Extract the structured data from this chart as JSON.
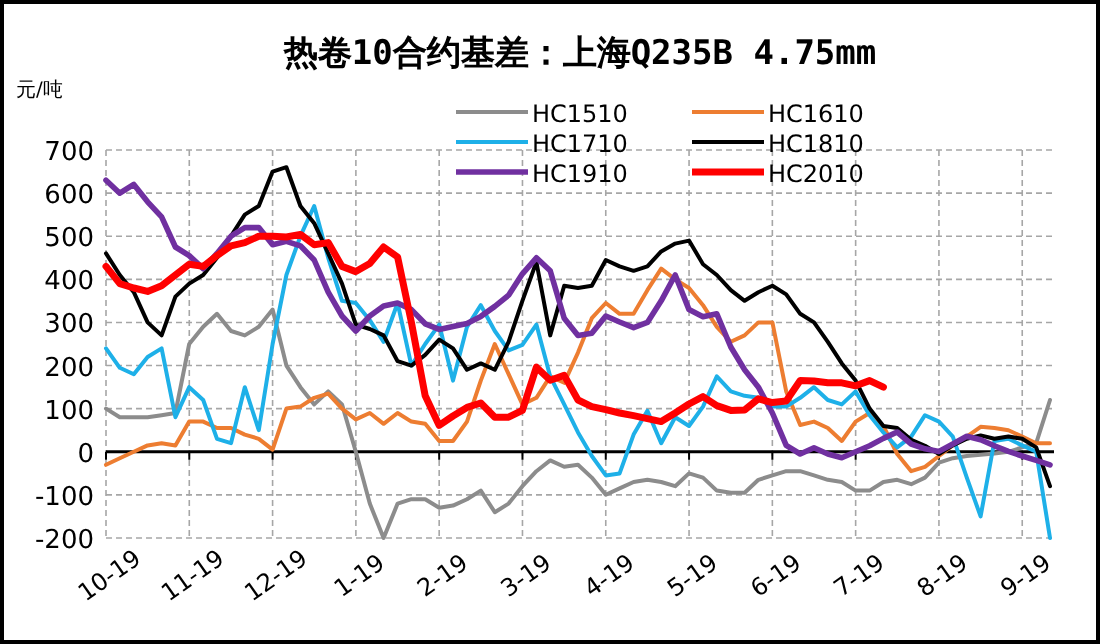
{
  "chart_data": {
    "type": "line",
    "title": "热卷10合约基差：上海Q235B 4.75mm",
    "ylabel": "元/吨",
    "categories": [
      "10-19",
      null,
      null,
      null,
      null,
      null,
      "11-19",
      null,
      null,
      null,
      null,
      null,
      "12-19",
      null,
      null,
      null,
      null,
      null,
      "1-19",
      null,
      null,
      null,
      null,
      null,
      "2-19",
      null,
      null,
      null,
      null,
      null,
      "3-19",
      null,
      null,
      null,
      null,
      null,
      "4-19",
      null,
      null,
      null,
      null,
      null,
      "5-19",
      null,
      null,
      null,
      null,
      null,
      "6-19",
      null,
      null,
      null,
      null,
      null,
      "7-19",
      null,
      null,
      null,
      null,
      null,
      "8-19",
      null,
      null,
      null,
      null,
      null,
      "9-19",
      null,
      null
    ],
    "ylim": [
      -200,
      700
    ],
    "yticks": [
      -200,
      -100,
      0,
      100,
      200,
      300,
      400,
      500,
      600,
      700
    ],
    "grid": true,
    "legend": "top",
    "marker": "none",
    "line_style": "solid",
    "series": [
      {
        "name": "HC1510",
        "color": "#8c8c8c",
        "values": [
          100,
          80,
          80,
          80,
          85,
          90,
          250,
          290,
          320,
          280,
          270,
          290,
          330,
          200,
          150,
          110,
          140,
          110,
          0,
          -120,
          -200,
          -120,
          -110,
          -110,
          -130,
          -125,
          -110,
          -90,
          -140,
          -120,
          -80,
          -45,
          -20,
          -35,
          -30,
          -60,
          -100,
          -85,
          -70,
          -65,
          -70,
          -80,
          -50,
          -60,
          -90,
          -95,
          -95,
          -65,
          -55,
          -45,
          -45,
          -55,
          -65,
          -70,
          -90,
          -90,
          -70,
          -65,
          -75,
          -60,
          -25,
          -15,
          -10,
          -7,
          -4,
          0,
          10,
          20,
          120
        ]
      },
      {
        "name": "HC1610",
        "color": "#ed7d31",
        "values": [
          -30,
          -15,
          0,
          15,
          20,
          15,
          70,
          70,
          55,
          55,
          40,
          30,
          5,
          100,
          105,
          125,
          135,
          100,
          75,
          90,
          65,
          90,
          70,
          65,
          25,
          25,
          70,
          165,
          250,
          180,
          110,
          125,
          175,
          160,
          230,
          310,
          345,
          320,
          320,
          375,
          425,
          400,
          380,
          340,
          290,
          255,
          270,
          300,
          300,
          140,
          62,
          70,
          55,
          25,
          70,
          90,
          60,
          -5,
          -45,
          -35,
          -10,
          15,
          35,
          58,
          55,
          50,
          35,
          20,
          20
        ]
      },
      {
        "name": "HC1710",
        "color": "#1eb0e8",
        "values": [
          240,
          195,
          180,
          220,
          240,
          80,
          150,
          120,
          30,
          20,
          150,
          50,
          250,
          410,
          500,
          570,
          450,
          350,
          345,
          305,
          255,
          345,
          200,
          250,
          295,
          165,
          290,
          340,
          280,
          235,
          248,
          295,
          175,
          110,
          45,
          -10,
          -55,
          -50,
          40,
          95,
          20,
          80,
          60,
          105,
          175,
          140,
          130,
          125,
          105,
          105,
          125,
          150,
          120,
          110,
          140,
          85,
          45,
          10,
          35,
          85,
          70,
          35,
          -60,
          -150,
          25,
          30,
          15,
          0,
          -200
        ]
      },
      {
        "name": "HC1810",
        "color": "#000000",
        "values": [
          460,
          410,
          370,
          300,
          270,
          360,
          390,
          410,
          450,
          500,
          550,
          570,
          650,
          660,
          570,
          530,
          460,
          390,
          295,
          285,
          270,
          210,
          200,
          225,
          260,
          240,
          190,
          205,
          190,
          255,
          350,
          440,
          270,
          385,
          380,
          385,
          445,
          430,
          420,
          430,
          465,
          483,
          490,
          435,
          410,
          375,
          350,
          370,
          385,
          365,
          320,
          300,
          255,
          205,
          165,
          100,
          60,
          55,
          28,
          14,
          -5,
          15,
          30,
          38,
          30,
          35,
          30,
          10,
          -80
        ]
      },
      {
        "name": "HC1910",
        "color": "#7030a0",
        "values": [
          630,
          600,
          620,
          580,
          545,
          475,
          455,
          425,
          460,
          500,
          520,
          520,
          480,
          488,
          478,
          445,
          370,
          315,
          280,
          315,
          338,
          345,
          330,
          297,
          284,
          291,
          298,
          314,
          337,
          363,
          413,
          450,
          420,
          310,
          270,
          275,
          315,
          301,
          288,
          300,
          350,
          410,
          330,
          313,
          320,
          243,
          190,
          150,
          90,
          15,
          -5,
          9,
          -5,
          -14,
          0,
          14,
          31,
          46,
          18,
          7,
          1,
          18,
          36,
          28,
          14,
          1,
          -10,
          -20,
          -30
        ]
      },
      {
        "name": "HC2010",
        "color": "#ff0000",
        "values": [
          430,
          390,
          380,
          372,
          385,
          410,
          435,
          430,
          455,
          478,
          485,
          500,
          500,
          498,
          504,
          480,
          485,
          430,
          418,
          437,
          475,
          452,
          300,
          130,
          61,
          83,
          103,
          113,
          80,
          80,
          96,
          196,
          166,
          177,
          120,
          105,
          98,
          90,
          84,
          77,
          70,
          90,
          111,
          128,
          107,
          96,
          97,
          123,
          114,
          118,
          165,
          164,
          160,
          160,
          153,
          165,
          150,
          null,
          null,
          null,
          null,
          null,
          null,
          null,
          null,
          null,
          null,
          null,
          null
        ]
      }
    ]
  }
}
